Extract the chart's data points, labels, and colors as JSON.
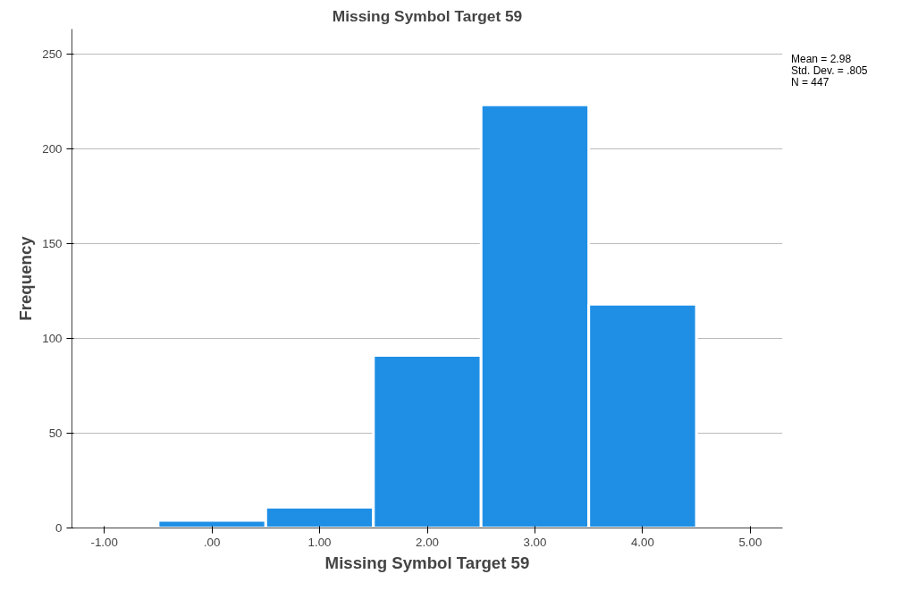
{
  "chart_data": {
    "type": "histogram",
    "title": "Missing Symbol Target 59",
    "xlabel": "Missing Symbol Target 59",
    "ylabel": "Frequency",
    "bins": [
      -0.5,
      0.5,
      1.5,
      2.5,
      3.5,
      4.5
    ],
    "values": [
      4,
      11,
      91,
      223,
      118
    ],
    "color": "#1f8fe6",
    "xlim": [
      -1.3,
      5.3
    ],
    "xticks": [
      {
        "value": -1,
        "label": "-1.00"
      },
      {
        "value": 0,
        "label": ".00"
      },
      {
        "value": 1,
        "label": "1.00"
      },
      {
        "value": 2,
        "label": "2.00"
      },
      {
        "value": 3,
        "label": "3.00"
      },
      {
        "value": 4,
        "label": "4.00"
      },
      {
        "value": 5,
        "label": "5.00"
      }
    ],
    "ylim": [
      0,
      263
    ],
    "yticks": [
      0,
      50,
      100,
      150,
      200,
      250
    ],
    "grid": "y",
    "annotations": [
      "Mean = 2.98",
      "Std. Dev. = .805",
      "N = 447"
    ]
  }
}
